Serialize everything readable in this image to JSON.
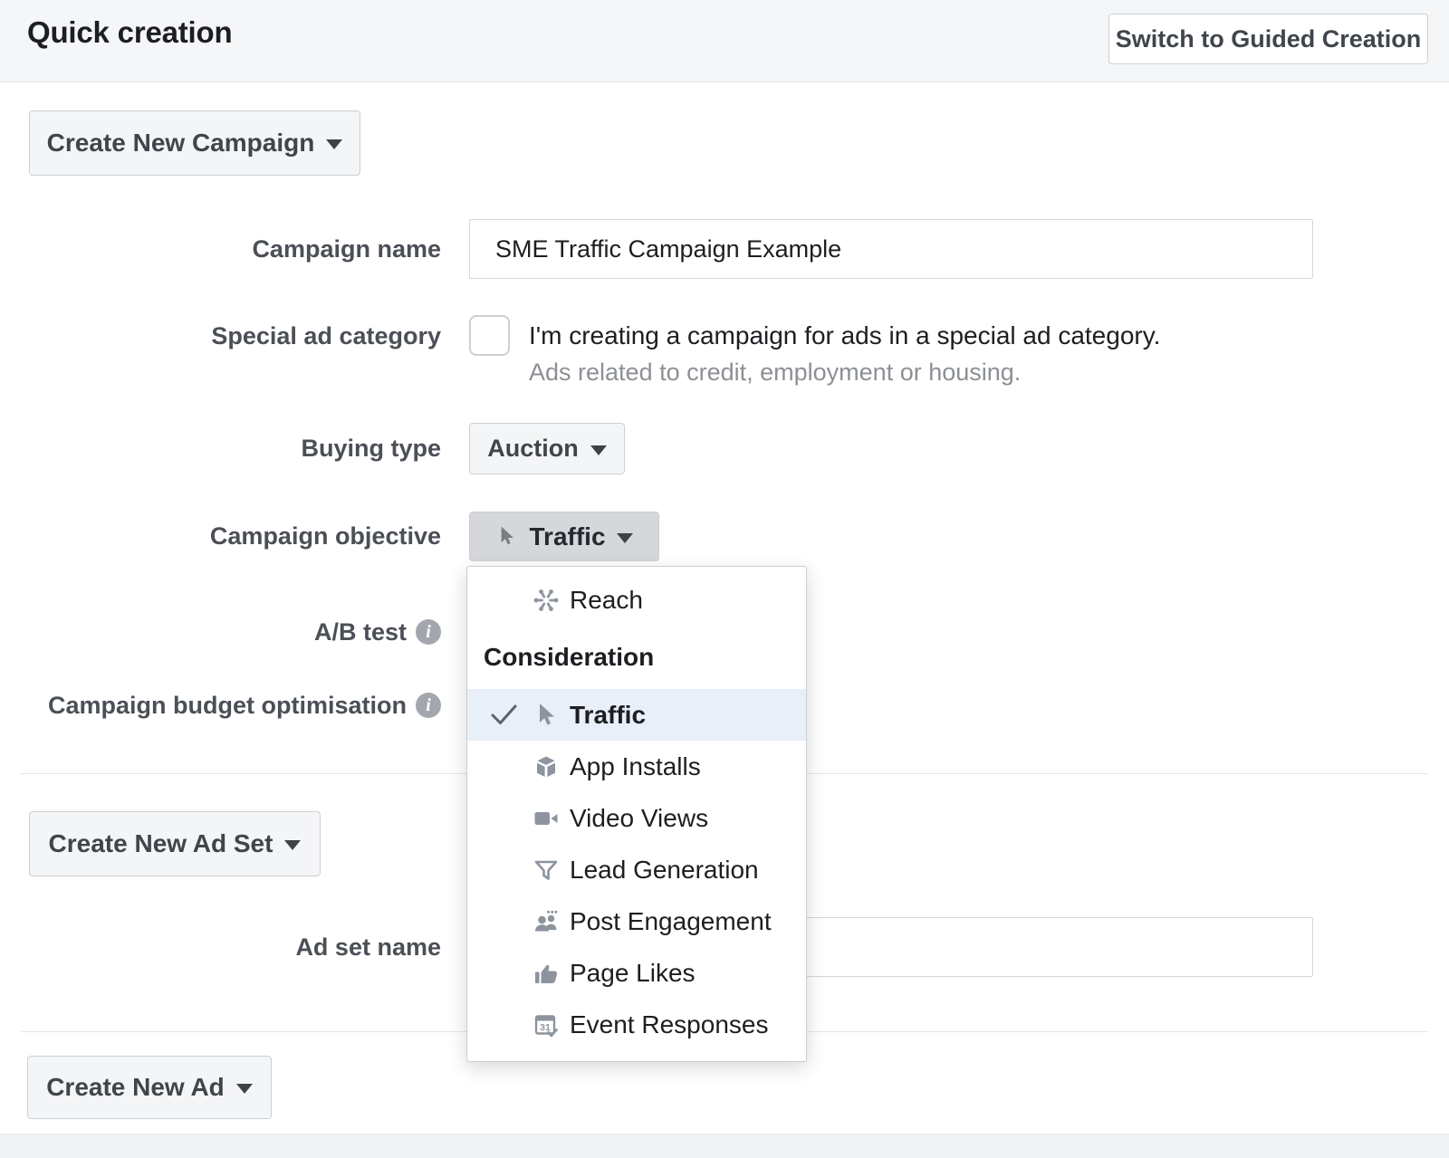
{
  "header": {
    "title": "Quick creation",
    "switch_button_label": "Switch to Guided Creation"
  },
  "campaign_section": {
    "create_campaign_button": "Create New Campaign",
    "campaign_name": {
      "label": "Campaign name",
      "value": "SME Traffic Campaign Example"
    },
    "special_ad_category": {
      "label": "Special ad category",
      "checkbox_checked": false,
      "checkbox_label": "I'm creating a campaign for ads in a special ad category.",
      "description": "Ads related to credit, employment or housing."
    },
    "buying_type": {
      "label": "Buying type",
      "value": "Auction"
    },
    "campaign_objective": {
      "label": "Campaign objective",
      "value": "Traffic"
    },
    "ab_test_label": "A/B test",
    "budget_optimisation_label": "Campaign budget optimisation"
  },
  "objective_dropdown": {
    "items": [
      {
        "kind": "option",
        "icon": "reach-icon",
        "label": "Reach",
        "selected": false
      },
      {
        "kind": "header",
        "label": "Consideration"
      },
      {
        "kind": "option",
        "icon": "traffic-cursor-icon",
        "label": "Traffic",
        "selected": true
      },
      {
        "kind": "option",
        "icon": "app-installs-cube-icon",
        "label": "App Installs",
        "selected": false
      },
      {
        "kind": "option",
        "icon": "video-views-camera-icon",
        "label": "Video Views",
        "selected": false
      },
      {
        "kind": "option",
        "icon": "lead-generation-funnel-icon",
        "label": "Lead Generation",
        "selected": false
      },
      {
        "kind": "option",
        "icon": "post-engagement-people-icon",
        "label": "Post Engagement",
        "selected": false
      },
      {
        "kind": "option",
        "icon": "page-likes-thumb-icon",
        "label": "Page Likes",
        "selected": false
      },
      {
        "kind": "option",
        "icon": "event-responses-calendar-icon",
        "label": "Event Responses",
        "selected": false
      }
    ]
  },
  "ad_set_section": {
    "create_ad_set_button": "Create New Ad Set",
    "ad_set_name": {
      "label": "Ad set name",
      "value": ""
    }
  },
  "ad_section": {
    "create_ad_button": "Create New Ad"
  },
  "colors": {
    "header_bg": "#f5f6f7",
    "button_bg": "#f4f5f7",
    "pressed_button_bg": "#d5d7db",
    "selected_row_bg": "#e9eff9",
    "icon_gray": "#8d949e",
    "border": "#ccd0d5"
  }
}
